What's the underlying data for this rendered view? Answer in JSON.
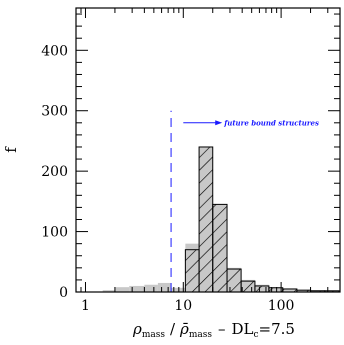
{
  "chart_data": {
    "type": "histogram",
    "xscale": "log",
    "xlim": [
      0.8,
      400
    ],
    "ylim": [
      0,
      470
    ],
    "xticks": [
      1,
      10,
      100
    ],
    "yticks": [
      0,
      100,
      200,
      300,
      400
    ],
    "ylabel": "f",
    "xlabel": {
      "rho": "ρ",
      "mass_sub": "mass",
      "slash": "/",
      "rhobar": "ρ̄",
      "mass_sub2": "mass",
      "dash": "–",
      "dl": "DL",
      "dl_sub": "c",
      "dl_val": "=7.5"
    },
    "threshold": 7.5,
    "annotation": "future bound structures",
    "colors": {
      "gray": "#c8c8c8",
      "hatch": "#000000",
      "threshold": "#1a1aff",
      "annotation": "#1a1aff"
    },
    "gray_bars": [
      {
        "x0": 1.5,
        "x1": 2.0,
        "y": 3
      },
      {
        "x0": 2.0,
        "x1": 2.8,
        "y": 8
      },
      {
        "x0": 2.8,
        "x1": 4.0,
        "y": 10
      },
      {
        "x0": 4.0,
        "x1": 5.5,
        "y": 12
      },
      {
        "x0": 5.5,
        "x1": 7.5,
        "y": 15
      },
      {
        "x0": 7.5,
        "x1": 10.5,
        "y": 7
      },
      {
        "x0": 10.5,
        "x1": 14.5,
        "y": 80
      },
      {
        "x0": 14.5,
        "x1": 20,
        "y": 240
      },
      {
        "x0": 20,
        "x1": 28,
        "y": 145
      },
      {
        "x0": 28,
        "x1": 39,
        "y": 40
      },
      {
        "x0": 39,
        "x1": 54,
        "y": 20
      },
      {
        "x0": 54,
        "x1": 75,
        "y": 12
      },
      {
        "x0": 75,
        "x1": 104,
        "y": 8
      },
      {
        "x0": 104,
        "x1": 145,
        "y": 6
      },
      {
        "x0": 145,
        "x1": 200,
        "y": 4
      },
      {
        "x0": 200,
        "x1": 280,
        "y": 3
      },
      {
        "x0": 280,
        "x1": 390,
        "y": 2
      }
    ],
    "hatched_bars": [
      {
        "x0": 10.5,
        "x1": 14.5,
        "y": 70
      },
      {
        "x0": 14.5,
        "x1": 20,
        "y": 240
      },
      {
        "x0": 20,
        "x1": 28,
        "y": 145
      },
      {
        "x0": 28,
        "x1": 39,
        "y": 38
      },
      {
        "x0": 39,
        "x1": 54,
        "y": 18
      },
      {
        "x0": 54,
        "x1": 75,
        "y": 10
      },
      {
        "x0": 75,
        "x1": 104,
        "y": 7
      },
      {
        "x0": 104,
        "x1": 145,
        "y": 5
      },
      {
        "x0": 145,
        "x1": 200,
        "y": 3
      },
      {
        "x0": 200,
        "x1": 280,
        "y": 2
      },
      {
        "x0": 280,
        "x1": 390,
        "y": 2
      }
    ]
  }
}
